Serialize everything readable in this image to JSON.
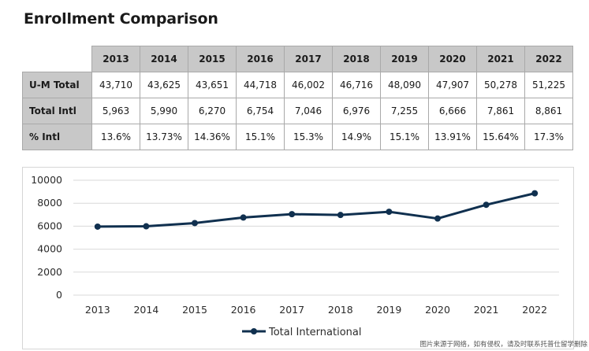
{
  "title": "Enrollment Comparison",
  "table": {
    "years": [
      "2013",
      "2014",
      "2015",
      "2016",
      "2017",
      "2018",
      "2019",
      "2020",
      "2021",
      "2022"
    ],
    "rows": [
      {
        "label": "U-M Total",
        "values": [
          "43,710",
          "43,625",
          "43,651",
          "44,718",
          "46,002",
          "46,716",
          "48,090",
          "47,907",
          "50,278",
          "51,225"
        ]
      },
      {
        "label": "Total Intl",
        "values": [
          "5,963",
          "5,990",
          "6,270",
          "6,754",
          "7,046",
          "6,976",
          "7,255",
          "6,666",
          "7,861",
          "8,861"
        ]
      },
      {
        "label": "% Intl",
        "values": [
          "13.6%",
          "13.73%",
          "14.36%",
          "15.1%",
          "15.3%",
          "14.9%",
          "15.1%",
          "13.91%",
          "15.64%",
          "17.3%"
        ]
      }
    ]
  },
  "chart_data": {
    "type": "line",
    "categories": [
      "2013",
      "2014",
      "2015",
      "2016",
      "2017",
      "2018",
      "2019",
      "2020",
      "2021",
      "2022"
    ],
    "series": [
      {
        "name": "Total International",
        "values": [
          5963,
          5990,
          6270,
          6754,
          7046,
          6976,
          7255,
          6666,
          7861,
          8861
        ]
      }
    ],
    "ylim": [
      0,
      10000
    ],
    "yticks": [
      "0",
      "2000",
      "4000",
      "6000",
      "8000",
      "10000"
    ],
    "ytick_values": [
      0,
      2000,
      4000,
      6000,
      8000,
      10000
    ],
    "title": "",
    "xlabel": "",
    "ylabel": "",
    "grid": true,
    "legend_position": "bottom-center",
    "line_color": "#10304f"
  },
  "watermark": "图片来源于网络，如有侵权，请及时联系托普仕留学删除"
}
